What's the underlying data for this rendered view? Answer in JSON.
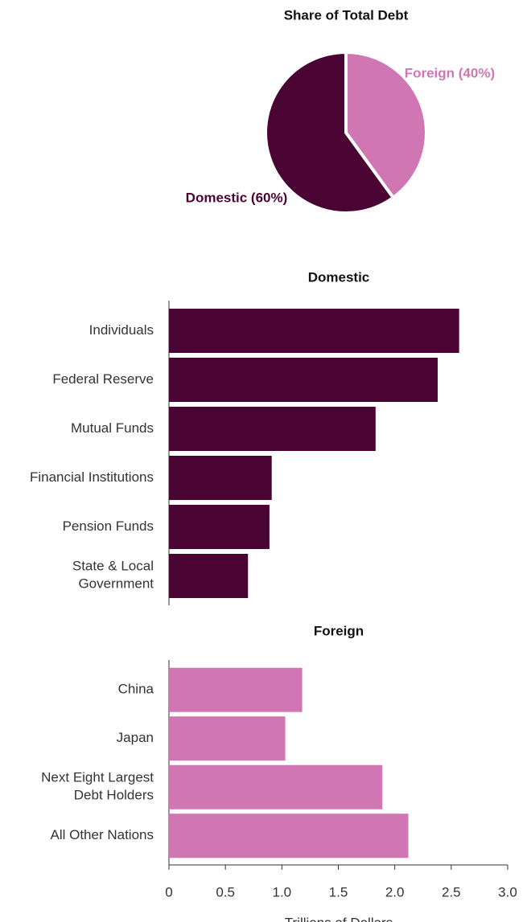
{
  "chart_data": [
    {
      "type": "pie",
      "title": "Share of Total Debt",
      "values": [
        40,
        60
      ],
      "value_labels": [
        "Foreign (40%)",
        "Domestic (60%)"
      ],
      "colors": [
        "#d077b3",
        "#4a0433"
      ]
    },
    {
      "type": "barh",
      "title": "Domestic",
      "categories": [
        "Individuals",
        "Federal Reserve",
        "Mutual Funds",
        "Financial Institutions",
        "Pension Funds",
        "State & Local\nGovernment"
      ],
      "values": [
        2.57,
        2.38,
        1.83,
        0.91,
        0.89,
        0.7
      ],
      "color": "#4a0433",
      "xlim": [
        0,
        3
      ]
    },
    {
      "type": "barh",
      "title": "Foreign",
      "categories": [
        "China",
        "Japan",
        "Next Eight Largest\nDebt Holders",
        "All Other Nations"
      ],
      "values": [
        1.18,
        1.03,
        1.89,
        2.12
      ],
      "color": "#d077b3",
      "xlim": [
        0,
        3
      ],
      "xticks": [
        0,
        0.5,
        {
          "value": 1,
          "label": "1.0"
        },
        1.5,
        {
          "value": 2,
          "label": "2.0"
        },
        2.5,
        {
          "value": 3,
          "label": "3.0"
        }
      ],
      "xlabel": "Trillions of Dollars"
    }
  ]
}
